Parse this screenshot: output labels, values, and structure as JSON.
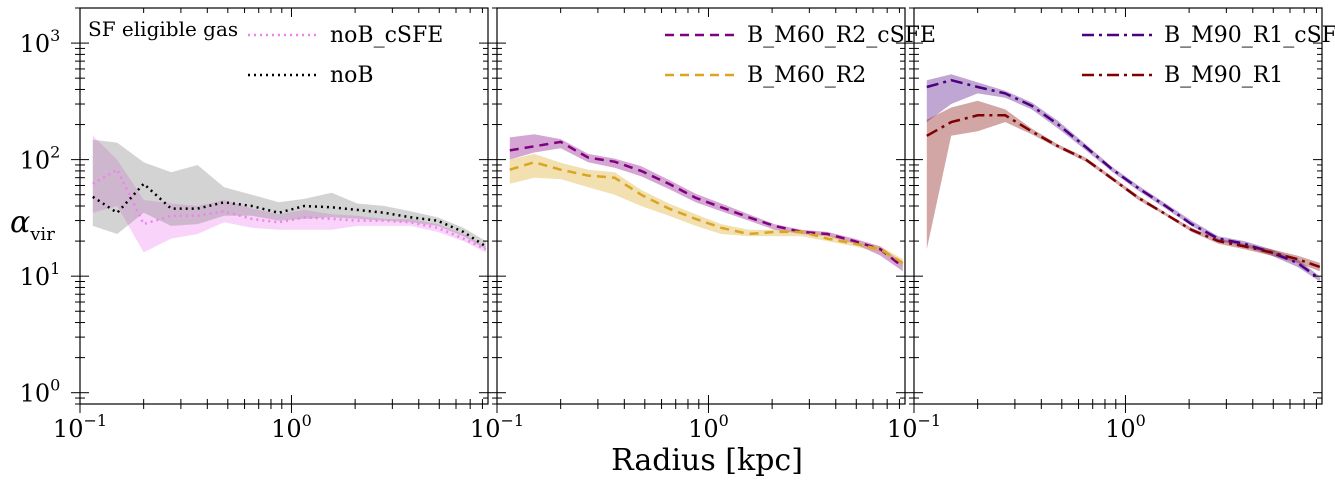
{
  "chart_data": {
    "type": "line",
    "ylabel": "α",
    "ylabel_sub": "vir",
    "xlabel": "Radius [kpc]",
    "x_scale": "log",
    "y_scale": "log",
    "xlim": [
      0.1,
      8.5
    ],
    "ylim": [
      0.8,
      2000
    ],
    "ytick_values": [
      1,
      10,
      100,
      1000
    ],
    "ytick_labels": [
      {
        "base": "10",
        "exp": "0"
      },
      {
        "base": "10",
        "exp": "1"
      },
      {
        "base": "10",
        "exp": "2"
      },
      {
        "base": "10",
        "exp": "3"
      }
    ],
    "xtick_values": [
      0.1,
      1
    ],
    "xtick_labels": [
      {
        "base": "10",
        "exp": "−1"
      },
      {
        "base": "10",
        "exp": "0"
      }
    ],
    "x": [
      0.115,
      0.15,
      0.2,
      0.27,
      0.36,
      0.48,
      0.65,
      0.87,
      1.15,
      1.55,
      2.05,
      2.75,
      3.65,
      4.9,
      6.5,
      8.3
    ],
    "panels": [
      {
        "annotation": "SF eligible gas",
        "legend_position": "top-right",
        "series": [
          {
            "name": "noB_cSFE",
            "color": "#ee82ee",
            "dash": "dotted",
            "values": [
              62,
              82,
              28,
              33,
              33,
              36,
              31,
              29,
              32,
              31,
              30,
              30,
              29,
              26,
              21,
              17
            ],
            "lower": [
              35,
              40,
              16,
              21,
              23,
              29,
              26,
              25,
              25,
              25,
              27,
              27,
              27,
              24,
              20,
              16
            ],
            "upper": [
              160,
              100,
              45,
              42,
              40,
              45,
              38,
              34,
              37,
              34,
              33,
              31,
              31,
              28,
              23,
              18
            ]
          },
          {
            "name": "noB",
            "color": "#000000",
            "dash": "dotted",
            "band_color": "#808080",
            "values": [
              48,
              35,
              62,
              38,
              38,
              43,
              40,
              35,
              40,
              39,
              37,
              35,
              32,
              30,
              24,
              18
            ],
            "lower": [
              27,
              23,
              35,
              27,
              28,
              33,
              33,
              30,
              31,
              32,
              31,
              30,
              29,
              27,
              22,
              17
            ],
            "upper": [
              148,
              140,
              95,
              78,
              90,
              58,
              50,
              43,
              46,
              52,
              42,
              40,
              36,
              32,
              26,
              20
            ]
          }
        ]
      },
      {
        "annotation": "",
        "legend_position": "top-right",
        "series": [
          {
            "name": "B_M60_R2_cSFE",
            "color": "#800080",
            "dash": "dashed",
            "values": [
              120,
              130,
              142,
              104,
              96,
              80,
              62,
              47,
              39,
              32,
              27,
              24,
              23,
              20,
              17,
              12
            ],
            "lower": [
              100,
              115,
              125,
              95,
              85,
              72,
              56,
              43,
              36,
              30,
              25,
              23,
              22,
              19,
              15,
              11
            ],
            "upper": [
              155,
              165,
              150,
              112,
              102,
              88,
              67,
              51,
              42,
              34,
              28,
              25,
              24,
              21,
              18,
              13
            ]
          },
          {
            "name": "B_M60_R2",
            "color": "#daa520",
            "dash": "dashed",
            "values": [
              82,
              95,
              82,
              73,
              70,
              50,
              38,
              31,
              26,
              23,
              24,
              24,
              21,
              19,
              17,
              13
            ],
            "lower": [
              62,
              70,
              68,
              58,
              50,
              40,
              33,
              27,
              23,
              22,
              22,
              22,
              20,
              18,
              16,
              12
            ],
            "upper": [
              100,
              112,
              94,
              82,
              78,
              55,
              42,
              34,
              28,
              25,
              25,
              25,
              23,
              20,
              18,
              14
            ]
          }
        ]
      },
      {
        "annotation": "",
        "legend_position": "top-right",
        "series": [
          {
            "name": "B_M90_R1_cSFE",
            "color": "#4b0082",
            "dash": "dashdot",
            "values": [
              420,
              480,
              420,
              370,
              290,
              200,
              128,
              82,
              57,
              40,
              28,
              21,
              19,
              16,
              13,
              9.5
            ],
            "lower": [
              210,
              300,
              370,
              340,
              270,
              185,
              120,
              78,
              54,
              38,
              27,
              20,
              18,
              15,
              12,
              9
            ],
            "upper": [
              480,
              540,
              460,
              390,
              310,
              215,
              135,
              86,
              60,
              42,
              30,
              22,
              20,
              17,
              14,
              10
            ]
          },
          {
            "name": "B_M90_R1",
            "color": "#800000",
            "dash": "dashdot",
            "values": [
              160,
              210,
              240,
              240,
              175,
              130,
              100,
              68,
              47,
              34,
              25,
              20,
              18,
              16,
              14,
              12
            ],
            "lower": [
              17,
              160,
              175,
              210,
              165,
              125,
              96,
              66,
              45,
              33,
              24,
              19,
              17,
              15,
              13,
              11
            ],
            "upper": [
              220,
              280,
              320,
              270,
              185,
              135,
              104,
              71,
              49,
              35,
              26,
              21,
              19,
              17,
              15,
              13
            ]
          }
        ]
      }
    ]
  }
}
